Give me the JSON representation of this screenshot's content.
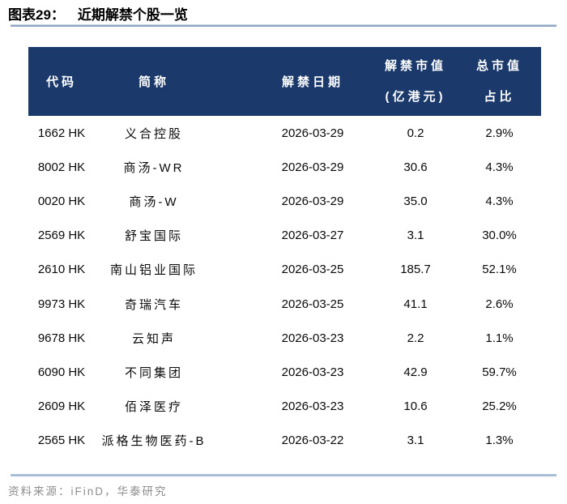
{
  "page": {
    "figure_label": "图表29：",
    "figure_title": "近期解禁个股一览",
    "source": "资料来源：iFinD，华泰研究"
  },
  "table": {
    "columns": [
      {
        "line1": "代码",
        "line2": ""
      },
      {
        "line1": "简称",
        "line2": ""
      },
      {
        "line1": "解禁日期",
        "line2": ""
      },
      {
        "line1": "解禁市值",
        "line2": "(亿港元)"
      },
      {
        "line1": "总市值",
        "line2": "占比"
      }
    ],
    "rows": [
      [
        "1662 HK",
        "义合控股",
        "2026-03-29",
        "0.2",
        "2.9%"
      ],
      [
        "8002 HK",
        "商汤-WR",
        "2026-03-29",
        "30.6",
        "4.3%"
      ],
      [
        "0020 HK",
        "商汤-W",
        "2026-03-29",
        "35.0",
        "4.3%"
      ],
      [
        "2569 HK",
        "舒宝国际",
        "2026-03-27",
        "3.1",
        "30.0%"
      ],
      [
        "2610 HK",
        "南山铝业国际",
        "2026-03-25",
        "185.7",
        "52.1%"
      ],
      [
        "9973 HK",
        "奇瑞汽车",
        "2026-03-25",
        "41.1",
        "2.6%"
      ],
      [
        "9678 HK",
        "云知声",
        "2026-03-23",
        "2.2",
        "1.1%"
      ],
      [
        "6090 HK",
        "不同集团",
        "2026-03-23",
        "42.9",
        "59.7%"
      ],
      [
        "2609 HK",
        "佰泽医疗",
        "2026-03-23",
        "10.6",
        "25.2%"
      ],
      [
        "2565 HK",
        "派格生物医药-B",
        "2026-03-22",
        "3.1",
        "1.3%"
      ]
    ]
  },
  "colors": {
    "header_bg": "#1b3a6b",
    "header_text": "#ffffff",
    "body_text": "#0a0a0a",
    "title_rule": "#8da6c6",
    "footer_rule": "#a8bdd6",
    "source_text": "#8c8c8c"
  },
  "chart_data": {
    "type": "table",
    "title": "图表29： 近期解禁个股一览",
    "columns": [
      "代码",
      "简称",
      "解禁日期",
      "解禁市值(亿港元)",
      "总市值占比"
    ],
    "rows": [
      [
        "1662 HK",
        "义合控股",
        "2026-03-29",
        0.2,
        "2.9%"
      ],
      [
        "8002 HK",
        "商汤-WR",
        "2026-03-29",
        30.6,
        "4.3%"
      ],
      [
        "0020 HK",
        "商汤-W",
        "2026-03-29",
        35.0,
        "4.3%"
      ],
      [
        "2569 HK",
        "舒宝国际",
        "2026-03-27",
        3.1,
        "30.0%"
      ],
      [
        "2610 HK",
        "南山铝业国际",
        "2026-03-25",
        185.7,
        "52.1%"
      ],
      [
        "9973 HK",
        "奇瑞汽车",
        "2026-03-25",
        41.1,
        "2.6%"
      ],
      [
        "9678 HK",
        "云知声",
        "2026-03-23",
        2.2,
        "1.1%"
      ],
      [
        "6090 HK",
        "不同集团",
        "2026-03-23",
        42.9,
        "59.7%"
      ],
      [
        "2609 HK",
        "佰泽医疗",
        "2026-03-23",
        10.6,
        "25.2%"
      ],
      [
        "2565 HK",
        "派格生物医药-B",
        "2026-03-22",
        3.1,
        "1.3%"
      ]
    ],
    "source": "资料来源：iFinD，华泰研究"
  }
}
